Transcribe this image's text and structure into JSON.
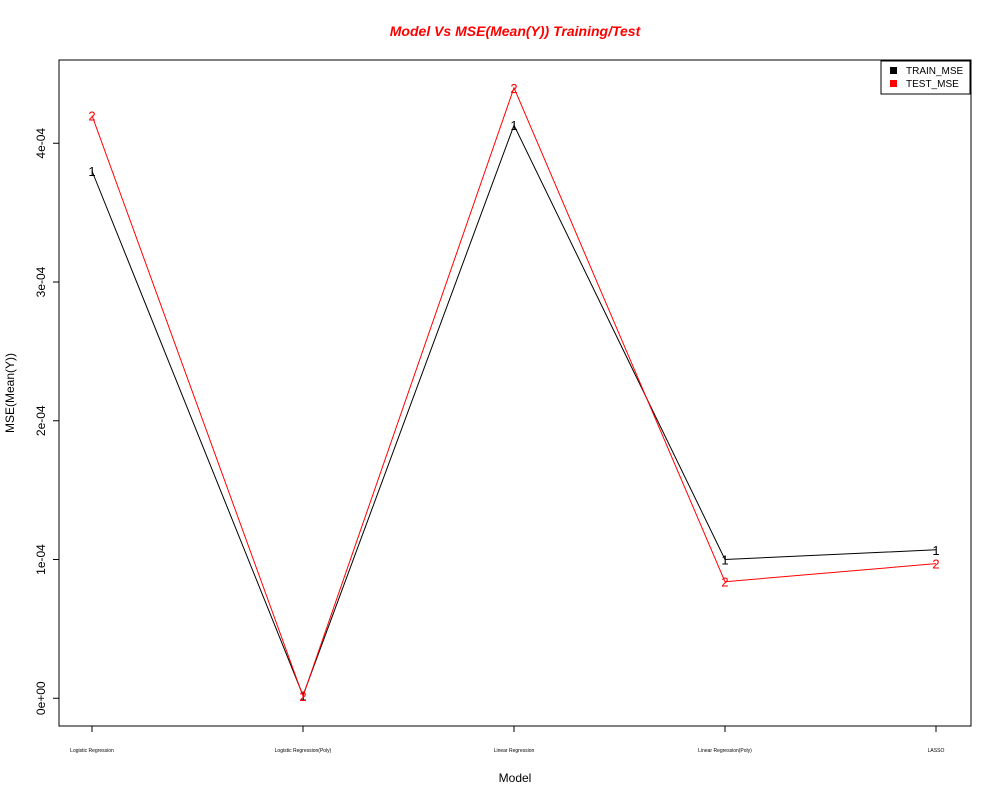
{
  "chart_data": {
    "type": "line",
    "title": "Model Vs MSE(Mean(Y)) Training/Test",
    "title_color": "#ff0000",
    "xlabel": "Model",
    "ylabel": "MSE(Mean(Y))",
    "categories": [
      "Logistic Regression",
      "Logistic Regression(Poly)",
      "Linear Regression",
      "Linear Regression(Poly)",
      "LASSO"
    ],
    "ylim": [
      -2e-05,
      0.00046
    ],
    "yticks": [
      0,
      0.0001,
      0.0002,
      0.0003,
      0.0004
    ],
    "ytick_labels": [
      "0e+00",
      "1e-04",
      "2e-04",
      "3e-04",
      "4e-04"
    ],
    "grid": false,
    "legend_position": "top-right",
    "series": [
      {
        "name": "TRAIN_MSE",
        "marker": "1",
        "color": "#000000",
        "values": [
          0.00038,
          2e-06,
          0.000413,
          0.0001,
          0.000107
        ]
      },
      {
        "name": "TEST_MSE",
        "marker": "2",
        "color": "#ff0000",
        "values": [
          0.00042,
          1.5e-06,
          0.00044,
          8.4e-05,
          9.7e-05
        ]
      }
    ]
  }
}
